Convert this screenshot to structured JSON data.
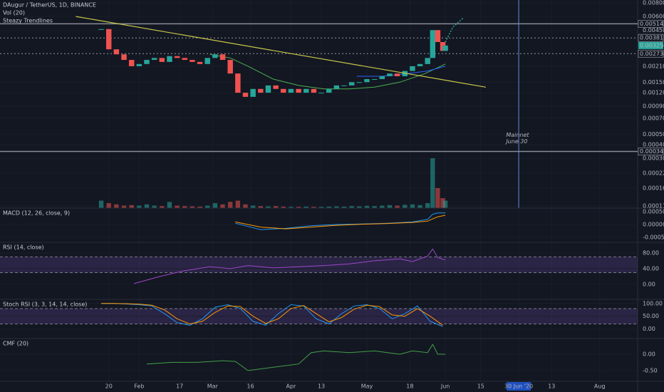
{
  "chart_data": [
    {
      "type": "candlestick",
      "title": "DAugur / TetherUS, 1D, BINANCE",
      "subtitles": [
        "Vol (20)",
        "Steazy Trendlines"
      ],
      "log_scale": true,
      "up_color": "#26a69a",
      "down_color": "#ef5350",
      "xlim": [
        -23,
        229
      ],
      "xticks": [
        {
          "value": 20,
          "label": "20"
        },
        {
          "value": 32,
          "label": "Feb"
        },
        {
          "value": 48,
          "label": "17"
        },
        {
          "value": 61,
          "label": "Mar"
        },
        {
          "value": 76,
          "label": "16"
        },
        {
          "value": 92,
          "label": "Apr"
        },
        {
          "value": 104,
          "label": "13"
        },
        {
          "value": 122,
          "label": "May"
        },
        {
          "value": 139,
          "label": "18"
        },
        {
          "value": 153,
          "label": "Jun"
        },
        {
          "value": 167,
          "label": "15"
        },
        {
          "value": 182,
          "label": "30 Jun '20"
        },
        {
          "value": 195,
          "label": "13"
        },
        {
          "value": 214,
          "label": "Aug"
        }
      ],
      "ylim": [
        0.000105,
        0.0085
      ],
      "yticks": [
        {
          "value": 0.008,
          "label": "0.008000"
        },
        {
          "value": 0.006,
          "label": "0.006000"
        },
        {
          "value": 0.0045,
          "label": "0.004500"
        },
        {
          "value": 0.0021,
          "label": "0.002100"
        },
        {
          "value": 0.0015,
          "label": "0.001500"
        },
        {
          "value": 0.0012,
          "label": "0.001200"
        },
        {
          "value": 0.0009,
          "label": "0.000900"
        },
        {
          "value": 0.0007,
          "label": "0.000700"
        },
        {
          "value": 0.0005,
          "label": "0.000500"
        },
        {
          "value": 0.0004,
          "label": "0.000400"
        },
        {
          "value": 0.0003,
          "label": "0.000300"
        },
        {
          "value": 0.00022,
          "label": "0.000220"
        },
        {
          "value": 0.00016,
          "label": "0.000160"
        },
        {
          "value": 0.00011,
          "label": "0.000110"
        }
      ],
      "levels": [
        {
          "value": 0.005142,
          "label": "0.005142",
          "style": "solid"
        },
        {
          "value": 0.003817,
          "label": "0.003817",
          "style": "dotted"
        },
        {
          "value": 0.00325,
          "label": "0.003250",
          "style": "current"
        },
        {
          "value": 0.002738,
          "label": "0.002738",
          "style": "dotted"
        },
        {
          "value": 0.000347,
          "label": "0.000347",
          "style": "solid"
        }
      ],
      "x": [
        17,
        20,
        23,
        26,
        29,
        32,
        35,
        38,
        41,
        44,
        47,
        50,
        53,
        56,
        59,
        62,
        65,
        68,
        71,
        74,
        77,
        80,
        83,
        86,
        89,
        92,
        95,
        98,
        101,
        104,
        107,
        110,
        113,
        116,
        119,
        122,
        125,
        128,
        131,
        134,
        137,
        140,
        143,
        146,
        148,
        150,
        152,
        153
      ],
      "values": [
        0.0046,
        0.003,
        0.0027,
        0.0024,
        0.0021,
        0.0022,
        0.0024,
        0.0025,
        0.0023,
        0.0026,
        0.0025,
        0.0024,
        0.0023,
        0.0022,
        0.0025,
        0.0027,
        0.0024,
        0.0018,
        0.0012,
        0.0011,
        0.0013,
        0.0012,
        0.0014,
        0.0013,
        0.0012,
        0.0013,
        0.0012,
        0.0013,
        0.0012,
        0.0012,
        0.0013,
        0.0014,
        0.0014,
        0.0015,
        0.0015,
        0.0016,
        0.0016,
        0.0017,
        0.0018,
        0.0017,
        0.0019,
        0.0021,
        0.0022,
        0.0025,
        0.0045,
        0.0035,
        0.0029,
        0.00325
      ],
      "volume": [
        3,
        2,
        1.5,
        1,
        1.2,
        1,
        1.5,
        1,
        0.8,
        2.5,
        1,
        0.8,
        0.7,
        0.6,
        1,
        2,
        1.5,
        2.5,
        3,
        1.5,
        1,
        0.8,
        0.7,
        0.8,
        0.6,
        0.5,
        0.5,
        0.6,
        0.5,
        0.5,
        0.6,
        0.7,
        0.6,
        0.8,
        0.7,
        0.9,
        0.8,
        1,
        1.2,
        1,
        1.3,
        1.5,
        1.2,
        2,
        20,
        8,
        4,
        3
      ],
      "trendline": {
        "color": "#c8c84a",
        "x": [
          7,
          169
        ],
        "values": [
          0.006,
          0.00135
        ]
      },
      "moving_averages": [
        {
          "color": "#4caf50",
          "x": [
            60,
            68,
            75,
            85,
            95,
            105,
            115,
            125,
            135,
            145,
            153
          ],
          "values": [
            0.0027,
            0.0025,
            0.0021,
            0.0016,
            0.0014,
            0.0013,
            0.0013,
            0.00135,
            0.0015,
            0.0018,
            0.0022
          ]
        },
        {
          "color": "#2962ff",
          "x": [
            118,
            128,
            138,
            146,
            153
          ],
          "values": [
            0.0017,
            0.0017,
            0.0018,
            0.0019,
            0.0021
          ]
        }
      ],
      "projection": {
        "color": "#26a69a",
        "x": [
          153,
          156,
          160
        ],
        "values": [
          0.0035,
          0.0048,
          0.0058
        ]
      },
      "vline": {
        "x": 182,
        "color": "#5b8fd9"
      },
      "annotation": {
        "x": 177,
        "value": 0.00049,
        "text": [
          "Mainnet",
          "June 30"
        ]
      }
    },
    {
      "type": "line",
      "title": "MACD (12, 26, close, 9)",
      "ylim": [
        -0.000694,
        0.000639
      ],
      "yticks": [
        {
          "value": 0.0005,
          "label": "0.000500"
        },
        {
          "value": 0,
          "label": "0.000000"
        },
        {
          "value": -0.0005,
          "label": "-0.000500"
        }
      ],
      "x": [
        70,
        80,
        90,
        100,
        110,
        120,
        130,
        140,
        146,
        148,
        150,
        153
      ],
      "series": [
        {
          "color": "#2196f3",
          "values": [
            5e-05,
            -0.0002,
            -0.00015,
            -5e-05,
            0,
            2e-05,
            5e-05,
            0.0001,
            0.0002,
            0.0004,
            0.00045,
            0.00045
          ]
        },
        {
          "color": "#ff9800",
          "values": [
            0.0001,
            -0.0001,
            -0.00017,
            -0.0001,
            -3e-05,
            1e-05,
            4e-05,
            8e-05,
            0.00013,
            0.00022,
            0.0003,
            0.00036
          ]
        }
      ]
    },
    {
      "type": "line",
      "title": "RSI (14, close)",
      "ylim": [
        -38,
        107
      ],
      "yticks": [
        {
          "value": 80,
          "label": "80.00"
        },
        {
          "value": 40,
          "label": "40.00"
        },
        {
          "value": 0,
          "label": "0.00"
        }
      ],
      "bands": [
        70,
        30
      ],
      "band_color": "#7e57c2",
      "x": [
        30,
        40,
        50,
        60,
        68,
        75,
        85,
        95,
        105,
        115,
        125,
        135,
        140,
        146,
        148,
        150,
        153
      ],
      "series": [
        {
          "color": "#9c47c9",
          "values": [
            2,
            20,
            35,
            45,
            40,
            48,
            42,
            45,
            48,
            52,
            60,
            65,
            58,
            72,
            90,
            68,
            62
          ]
        }
      ]
    },
    {
      "type": "line",
      "title": "Stoch RSI (3, 3, 14, 14, close)",
      "ylim": [
        -37,
        116
      ],
      "yticks": [
        {
          "value": 100,
          "label": "100.00"
        },
        {
          "value": 50,
          "label": "50.00"
        },
        {
          "value": 0,
          "label": "0.00"
        }
      ],
      "bands": [
        80,
        20
      ],
      "band_color": "#7e57c2",
      "x": [
        17,
        22,
        27,
        32,
        37,
        42,
        47,
        52,
        57,
        62,
        67,
        72,
        77,
        82,
        87,
        92,
        97,
        102,
        107,
        112,
        117,
        122,
        127,
        132,
        137,
        142,
        147,
        152
      ],
      "series": [
        {
          "color": "#2196f3",
          "values": [
            100,
            100,
            98,
            95,
            90,
            60,
            25,
            15,
            40,
            85,
            95,
            80,
            30,
            15,
            60,
            95,
            90,
            40,
            20,
            60,
            90,
            95,
            80,
            40,
            60,
            90,
            30,
            10
          ]
        },
        {
          "color": "#ff9800",
          "values": [
            100,
            100,
            99,
            97,
            93,
            75,
            40,
            20,
            30,
            65,
            90,
            88,
            50,
            22,
            40,
            80,
            92,
            60,
            28,
            45,
            78,
            93,
            88,
            55,
            50,
            80,
            50,
            15
          ]
        }
      ]
    },
    {
      "type": "line",
      "title": "CMF (20)",
      "ylim": [
        -0.83,
        0.48
      ],
      "yticks": [
        {
          "value": 0,
          "label": "0.00"
        },
        {
          "value": -0.5,
          "label": "-0.50"
        }
      ],
      "bands": [
        0
      ],
      "x": [
        35,
        45,
        55,
        65,
        70,
        75,
        85,
        95,
        100,
        105,
        115,
        125,
        135,
        140,
        146,
        148,
        150,
        153
      ],
      "series": [
        {
          "color": "#43a047",
          "values": [
            -0.3,
            -0.25,
            -0.25,
            -0.2,
            -0.22,
            -0.5,
            -0.4,
            -0.3,
            0.05,
            0.1,
            0.05,
            0.1,
            0,
            0.1,
            0.05,
            0.3,
            0,
            0
          ]
        }
      ]
    }
  ]
}
